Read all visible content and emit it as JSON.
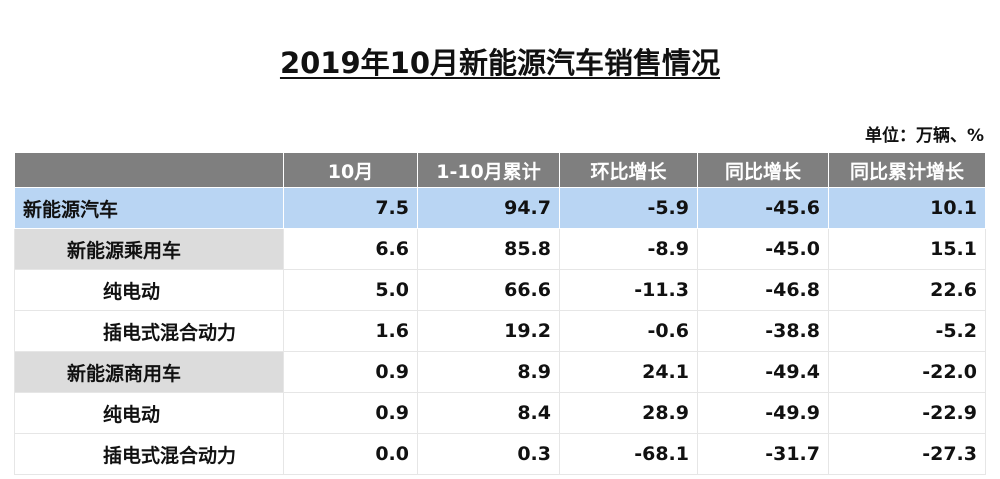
{
  "title": "2019年10月新能源汽车销售情况",
  "unit": "单位：万辆、%",
  "table": {
    "header": [
      "",
      "10月",
      "1-10月累计",
      "环比增长",
      "同比增长",
      "同比累计增长"
    ],
    "rows": [
      [
        "新能源汽车",
        "7.5",
        "94.7",
        "-5.9",
        "-45.6",
        "10.1"
      ],
      [
        "新能源乘用车",
        "6.6",
        "85.8",
        "-8.9",
        "-45.0",
        "15.1"
      ],
      [
        "纯电动",
        "5.0",
        "66.6",
        "-11.3",
        "-46.8",
        "22.6"
      ],
      [
        "插电式混合动力",
        "1.6",
        "19.2",
        "-0.6",
        "-38.8",
        "-5.2"
      ],
      [
        "新能源商用车",
        "0.9",
        "8.9",
        "24.1",
        "-49.4",
        "-22.0"
      ],
      [
        "纯电动",
        "0.9",
        "8.4",
        "28.9",
        "-49.9",
        "-22.9"
      ],
      [
        "插电式混合动力",
        "0.0",
        "0.3",
        "-68.1",
        "-31.7",
        "-27.3"
      ]
    ]
  }
}
